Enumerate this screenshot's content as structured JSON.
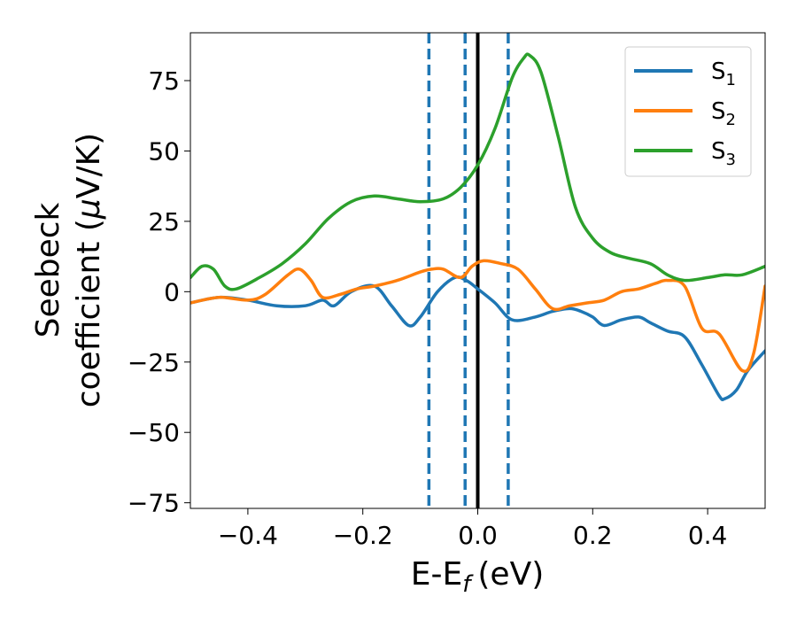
{
  "chart_data": {
    "type": "line",
    "xlabel": "E-E",
    "xlabel_sub": "f",
    "xlabel_unit": "(eV)",
    "ylabel_line1": "Seebeck",
    "ylabel_line2": "coefficient  (",
    "ylabel_mu": "μ",
    "ylabel_end": "V/K)",
    "xlim": [
      -0.5,
      0.5
    ],
    "ylim": [
      -77,
      92
    ],
    "xticks": [
      -0.4,
      -0.2,
      0.0,
      0.2,
      0.4
    ],
    "xtick_labels": [
      "−0.4",
      "−0.2",
      "0.0",
      "0.2",
      "0.4"
    ],
    "yticks": [
      -75,
      -50,
      -25,
      0,
      25,
      50,
      75
    ],
    "ytick_labels": [
      "−75",
      "−50",
      "−25",
      "0",
      "25",
      "50",
      "75"
    ],
    "legend_position": "top-right",
    "series": [
      {
        "name": "S",
        "sub": "1",
        "color": "#1f77b4",
        "x": [
          -0.5,
          -0.45,
          -0.4,
          -0.35,
          -0.3,
          -0.27,
          -0.25,
          -0.22,
          -0.18,
          -0.15,
          -0.12,
          -0.1,
          -0.07,
          -0.04,
          -0.02,
          0.0,
          0.03,
          0.06,
          0.1,
          0.13,
          0.16,
          0.18,
          0.2,
          0.22,
          0.25,
          0.28,
          0.3,
          0.33,
          0.36,
          0.39,
          0.42,
          0.43,
          0.45,
          0.47,
          0.5
        ],
        "y": [
          -4,
          -2,
          -3,
          -5,
          -5,
          -3,
          -5,
          0,
          2,
          -5,
          -12,
          -9,
          0,
          5,
          4,
          1,
          -4,
          -10,
          -9,
          -7,
          -6,
          -7,
          -9,
          -12,
          -10,
          -9,
          -11,
          -14,
          -16,
          -26,
          -37,
          -38,
          -35,
          -28,
          -21
        ]
      },
      {
        "name": "S",
        "sub": "2",
        "color": "#ff7f0e",
        "x": [
          -0.5,
          -0.45,
          -0.4,
          -0.37,
          -0.33,
          -0.31,
          -0.29,
          -0.27,
          -0.24,
          -0.21,
          -0.18,
          -0.14,
          -0.1,
          -0.08,
          -0.06,
          -0.03,
          -0.01,
          0.01,
          0.04,
          0.07,
          0.1,
          0.13,
          0.16,
          0.19,
          0.22,
          0.25,
          0.28,
          0.31,
          0.33,
          0.36,
          0.39,
          0.42,
          0.46,
          0.48,
          0.5
        ],
        "y": [
          -4,
          -2,
          -3,
          -1,
          6,
          8,
          4,
          -2,
          -1,
          1,
          2,
          4,
          7,
          8,
          8,
          5,
          9,
          11,
          10,
          8,
          1,
          -6,
          -5,
          -4,
          -3,
          0,
          1,
          3,
          4,
          2,
          -13,
          -15,
          -28,
          -22,
          2
        ]
      },
      {
        "name": "S",
        "sub": "3",
        "color": "#2ca02c",
        "x": [
          -0.5,
          -0.48,
          -0.46,
          -0.44,
          -0.42,
          -0.38,
          -0.34,
          -0.3,
          -0.26,
          -0.22,
          -0.18,
          -0.14,
          -0.1,
          -0.06,
          -0.03,
          0.0,
          0.03,
          0.06,
          0.08,
          0.09,
          0.11,
          0.14,
          0.17,
          0.2,
          0.23,
          0.26,
          0.3,
          0.33,
          0.36,
          0.4,
          0.43,
          0.46,
          0.5
        ],
        "y": [
          5,
          9,
          8,
          2,
          1,
          5,
          10,
          17,
          26,
          32,
          34,
          33,
          32,
          33,
          37,
          45,
          58,
          76,
          83,
          84,
          78,
          55,
          30,
          19,
          14,
          12,
          10,
          6,
          4,
          5,
          6,
          6,
          9
        ]
      }
    ],
    "vlines": [
      {
        "x": -0.085,
        "style": "dashed",
        "color": "#1f77b4"
      },
      {
        "x": -0.022,
        "style": "dashed",
        "color": "#1f77b4"
      },
      {
        "x": 0.0,
        "style": "solid",
        "color": "#000000"
      },
      {
        "x": 0.053,
        "style": "dashed",
        "color": "#1f77b4"
      }
    ]
  }
}
